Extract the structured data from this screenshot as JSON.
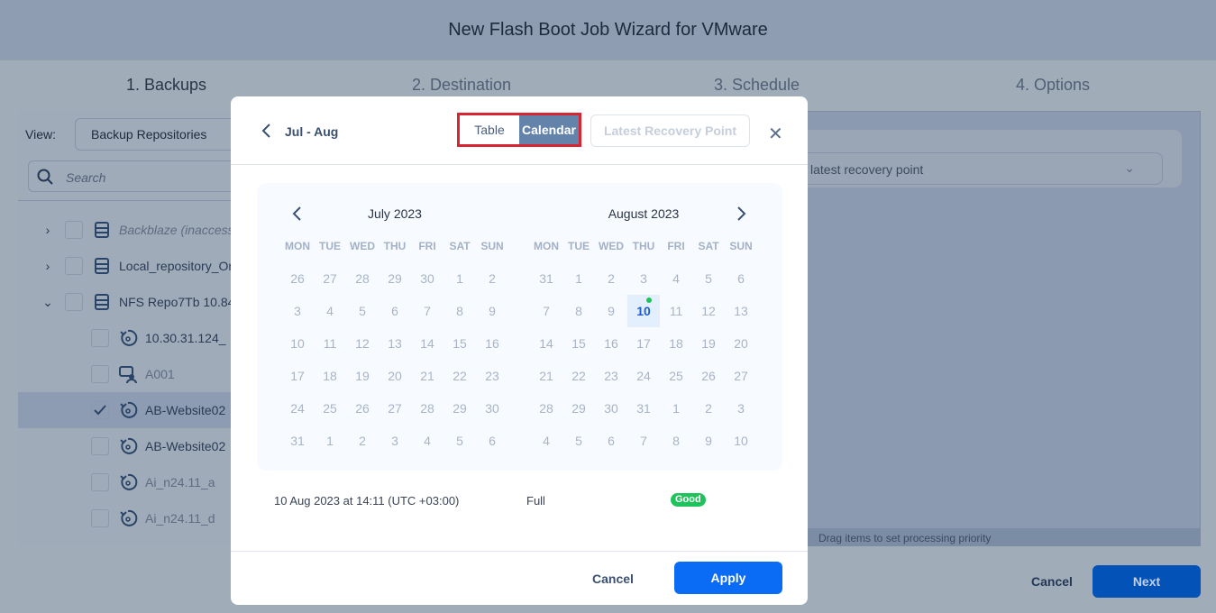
{
  "header": {
    "title": "New Flash Boot Job Wizard for VMware"
  },
  "steps": [
    "1. Backups",
    "2. Destination",
    "3. Schedule",
    "4. Options"
  ],
  "left": {
    "view_label": "View:",
    "view_value": "Backup Repositories",
    "search_placeholder": "Search",
    "tree": [
      {
        "label": "Backblaze (inaccess",
        "level": 0,
        "expand": "right",
        "icon": "repository-icon",
        "style": "italic"
      },
      {
        "label": "Local_repository_Or",
        "level": 0,
        "expand": "right",
        "icon": "repository-icon",
        "style": "normal"
      },
      {
        "label": "NFS Repo7Tb 10.84",
        "level": 0,
        "expand": "down",
        "icon": "repository-icon",
        "style": "normal"
      },
      {
        "label": "10.30.31.124_",
        "level": 1,
        "icon": "backup-icon",
        "style": "normal"
      },
      {
        "label": "A001",
        "level": 1,
        "icon": "vm-user-icon",
        "style": "dim"
      },
      {
        "label": "AB-Website02",
        "level": 1,
        "icon": "backup-icon",
        "style": "normal",
        "checked": true
      },
      {
        "label": "AB-Website02",
        "level": 1,
        "icon": "backup-icon",
        "style": "normal"
      },
      {
        "label": "Ai_n24.11_a",
        "level": 1,
        "icon": "backup-icon",
        "style": "dim"
      },
      {
        "label": "Ai_n24.11_d",
        "level": 1,
        "icon": "backup-icon",
        "style": "dim"
      }
    ]
  },
  "right": {
    "recovery_point_select": "latest recovery point",
    "drag_hint": "Drag items to set processing priority"
  },
  "footer": {
    "cancel": "Cancel",
    "next": "Next"
  },
  "modal": {
    "range_title": "Jul - Aug",
    "tab_table": "Table",
    "tab_calendar": "Calendar",
    "active_tab": "Calendar",
    "latest_button": "Latest Recovery Point",
    "weekdays": [
      "MON",
      "TUE",
      "WED",
      "THU",
      "FRI",
      "SAT",
      "SUN"
    ],
    "months": [
      {
        "title": "July 2023",
        "weeks": [
          [
            26,
            27,
            28,
            29,
            30,
            1,
            2
          ],
          [
            3,
            4,
            5,
            6,
            7,
            8,
            9
          ],
          [
            10,
            11,
            12,
            13,
            14,
            15,
            16
          ],
          [
            17,
            18,
            19,
            20,
            21,
            22,
            23
          ],
          [
            24,
            25,
            26,
            27,
            28,
            29,
            30
          ],
          [
            31,
            1,
            2,
            3,
            4,
            5,
            6
          ]
        ]
      },
      {
        "title": "August 2023",
        "weeks": [
          [
            31,
            1,
            2,
            3,
            4,
            5,
            6
          ],
          [
            7,
            8,
            9,
            10,
            11,
            12,
            13
          ],
          [
            14,
            15,
            16,
            17,
            18,
            19,
            20
          ],
          [
            21,
            22,
            23,
            24,
            25,
            26,
            27
          ],
          [
            28,
            29,
            30,
            31,
            1,
            2,
            3
          ],
          [
            4,
            5,
            6,
            7,
            8,
            9,
            10
          ]
        ],
        "selected": {
          "week": 1,
          "day": 3
        }
      }
    ],
    "recovery_point": {
      "date": "10 Aug 2023 at 14:11 (UTC +03:00)",
      "type": "Full",
      "status": "Good",
      "status_color": "#1fc35c"
    },
    "cancel": "Cancel",
    "apply": "Apply"
  },
  "colors": {
    "accent": "#0a6cf5",
    "highlight_box": "#d72631"
  }
}
